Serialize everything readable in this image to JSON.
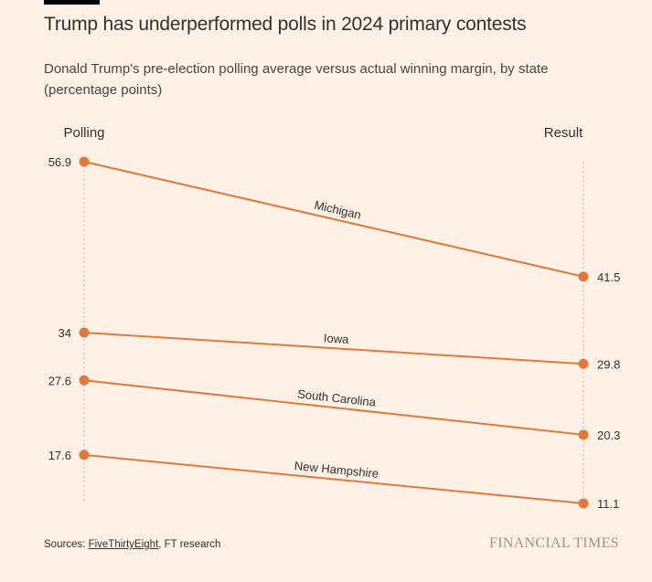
{
  "title": "Trump has underperformed polls in 2024 primary contests",
  "subtitle": "Donald Trump's pre-election polling average versus actual winning margin, by state (percentage points)",
  "chart_data": {
    "type": "slope",
    "left_label": "Polling",
    "right_label": "Result",
    "series": [
      {
        "name": "Michigan",
        "values": [
          56.9,
          41.5
        ]
      },
      {
        "name": "Iowa",
        "values": [
          34,
          29.8
        ]
      },
      {
        "name": "South Carolina",
        "values": [
          27.6,
          20.3
        ]
      },
      {
        "name": "New Hampshire",
        "values": [
          17.6,
          11.1
        ]
      }
    ],
    "ylim": [
      11.1,
      56.9
    ],
    "line_color": "#e07a3c"
  },
  "footer": {
    "sources_prefix": "Sources: ",
    "sources_link": "FiveThirtyEight",
    "sources_suffix": ", FT research",
    "logo": "FINANCIAL TIMES"
  }
}
